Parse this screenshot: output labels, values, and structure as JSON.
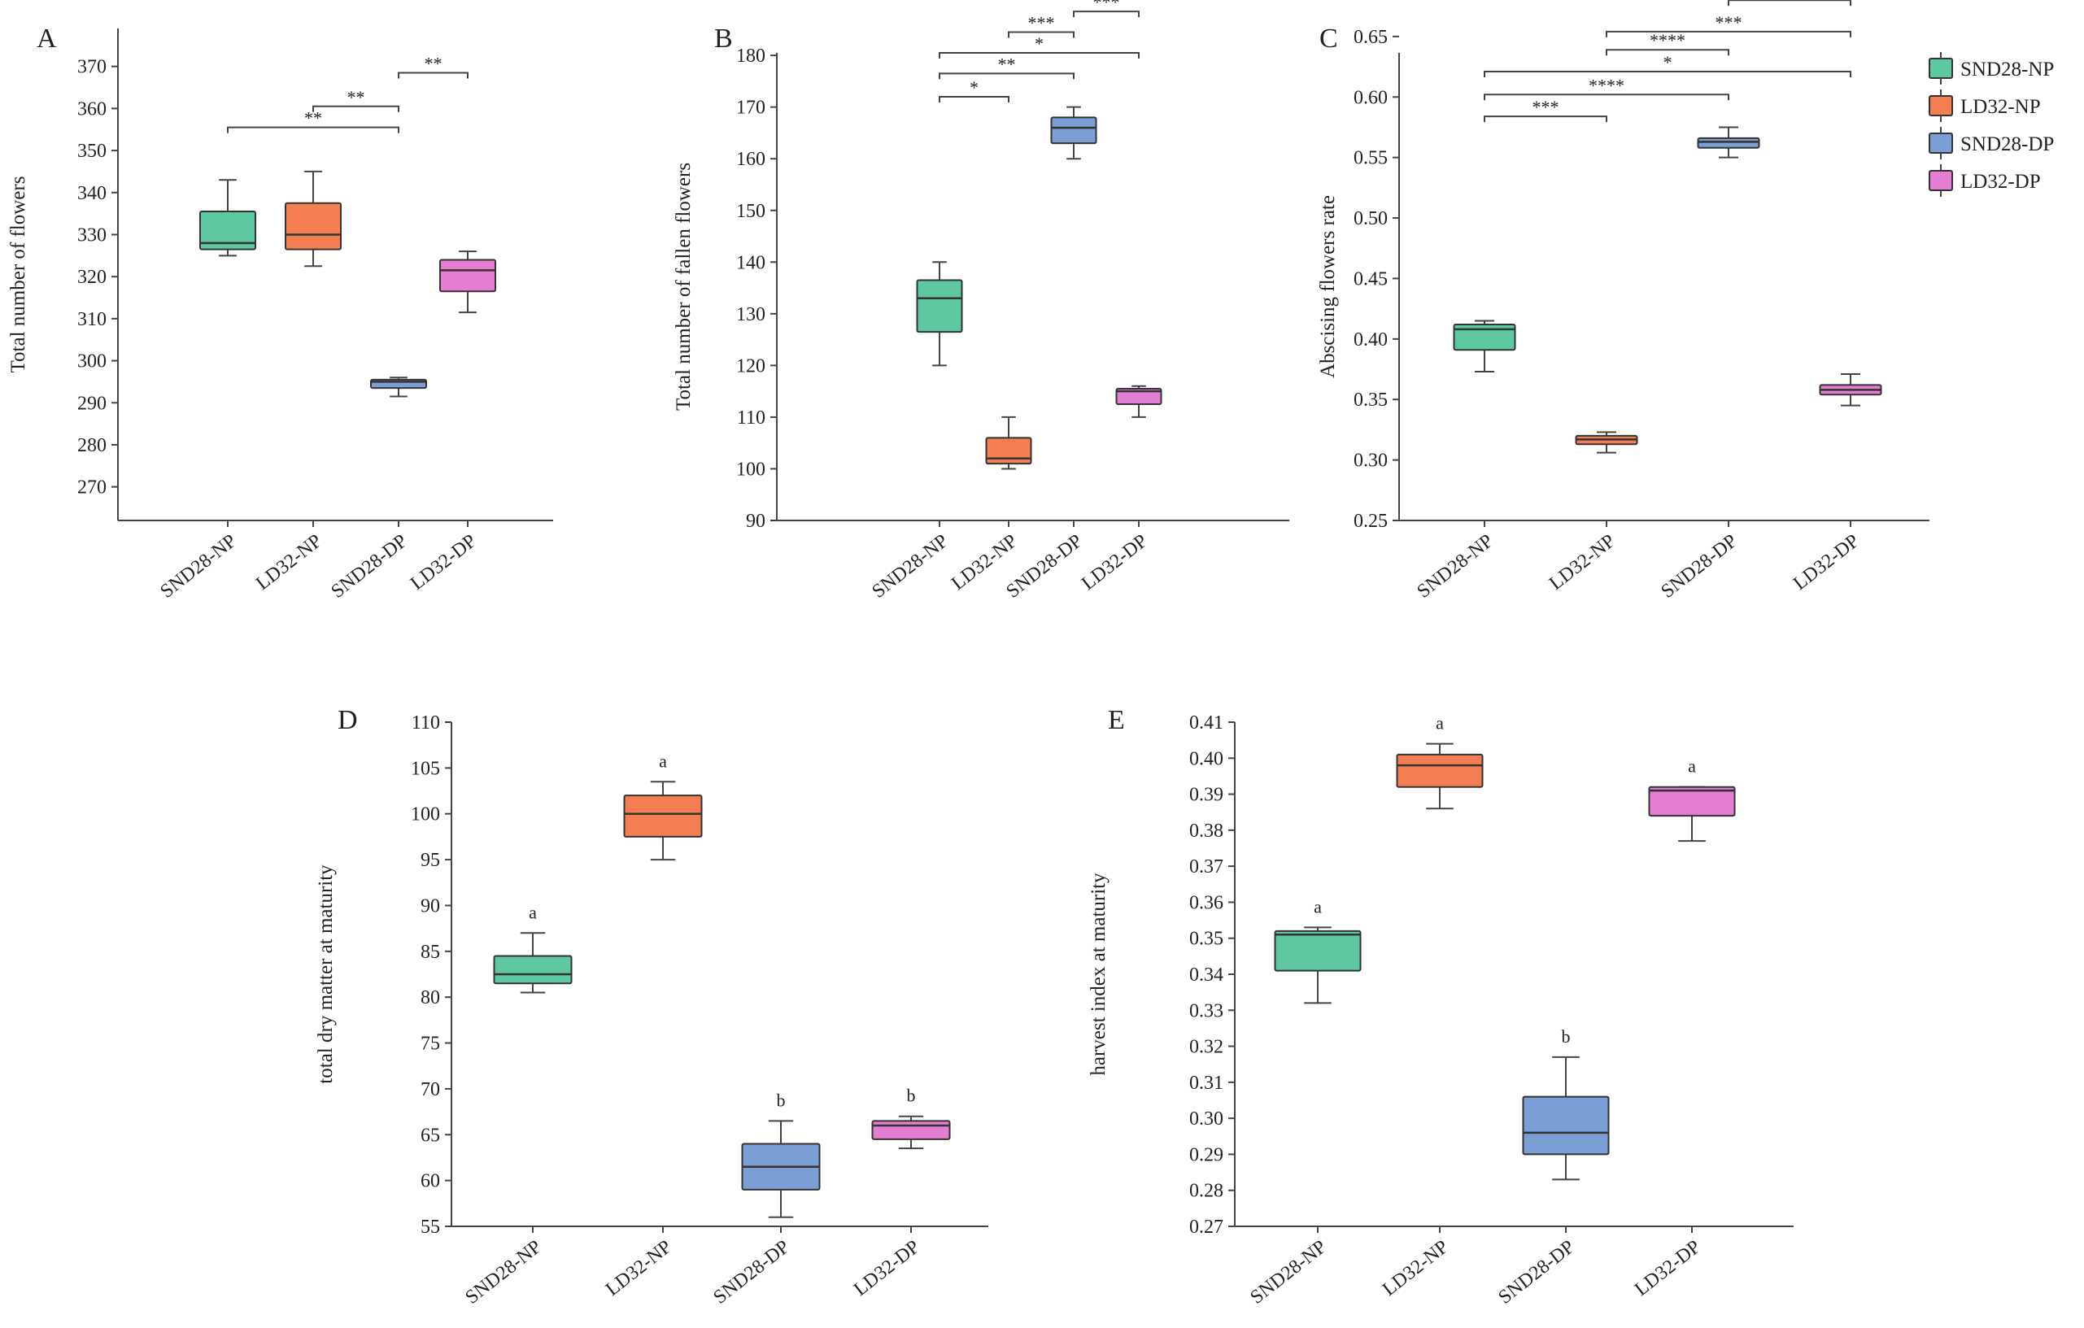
{
  "legend": {
    "entries": [
      {
        "label": "SND28-NP",
        "color": "#5ec8a0"
      },
      {
        "label": "LD32-NP",
        "color": "#f47e52"
      },
      {
        "label": "SND28-DP",
        "color": "#7b9fd4"
      },
      {
        "label": "LD32-DP",
        "color": "#e57ed2"
      }
    ]
  },
  "chart_data": [
    {
      "id": "A",
      "panel_label": "A",
      "type": "box",
      "ylabel": "Total number of flowers",
      "ylim": [
        262,
        380
      ],
      "yticks": [
        270,
        280,
        290,
        300,
        310,
        320,
        330,
        340,
        350,
        360,
        370
      ],
      "tick_decimals": 0,
      "xlim": [
        -0.6,
        4.8
      ],
      "categories": [
        "SND28-NP",
        "LD32-NP",
        "SND28-DP",
        "LD32-DP"
      ],
      "boxes": [
        {
          "min": 325,
          "q1": 326.5,
          "median": 328,
          "q3": 335.5,
          "max": 343
        },
        {
          "min": 322.5,
          "q1": 326.5,
          "median": 330,
          "q3": 337.5,
          "max": 345
        },
        {
          "min": 291.5,
          "q1": 293.5,
          "median": 295,
          "q3": 295.5,
          "max": 296
        },
        {
          "min": 311.5,
          "q1": 316.5,
          "median": 321.5,
          "q3": 324,
          "max": 326
        }
      ],
      "significance": [
        {
          "from": 0,
          "to": 2,
          "label": "**",
          "y": 355.5
        },
        {
          "from": 1,
          "to": 2,
          "label": "**",
          "y": 360.5
        },
        {
          "from": 2,
          "to": 3,
          "label": "**",
          "y": 368.5
        }
      ]
    },
    {
      "id": "B",
      "panel_label": "B",
      "type": "box",
      "ylabel": "Total number of fallen flowers",
      "ylim": [
        90,
        186
      ],
      "yticks": [
        90,
        100,
        110,
        120,
        130,
        140,
        150,
        160,
        170,
        180
      ],
      "tick_decimals": 0,
      "xlim": [
        -1.8,
        4.7
      ],
      "categories": [
        "SND28-NP",
        "LD32-NP",
        "SND28-DP",
        "LD32-DP"
      ],
      "boxes": [
        {
          "min": 120,
          "q1": 126.5,
          "median": 133,
          "q3": 136.5,
          "max": 140
        },
        {
          "min": 100,
          "q1": 101,
          "median": 102,
          "q3": 106,
          "max": 110
        },
        {
          "min": 160,
          "q1": 163,
          "median": 166,
          "q3": 168,
          "max": 170
        },
        {
          "min": 110,
          "q1": 112.5,
          "median": 115,
          "q3": 115.5,
          "max": 116
        }
      ],
      "significance": [
        {
          "from": 0,
          "to": 1,
          "label": "*",
          "y": 172
        },
        {
          "from": 0,
          "to": 2,
          "label": "**",
          "y": 176.5
        },
        {
          "from": 0,
          "to": 3,
          "label": "*",
          "y": 180.5
        },
        {
          "from": 1,
          "to": 2,
          "label": "***",
          "y": 184.5
        },
        {
          "from": 2,
          "to": 3,
          "label": "***",
          "y": 188.5
        }
      ]
    },
    {
      "id": "C",
      "panel_label": "C",
      "type": "box",
      "ylabel": "Abscising flowers rate",
      "ylim": [
        0.25,
        0.66
      ],
      "yticks": [
        0.25,
        0.3,
        0.35,
        0.4,
        0.45,
        0.5,
        0.55,
        0.6,
        0.65
      ],
      "tick_decimals": 2,
      "xlim": [
        -0.55,
        3.6
      ],
      "categories": [
        "SND28-NP",
        "LD32-NP",
        "SND28-DP",
        "LD32-DP"
      ],
      "boxes": [
        {
          "min": 0.373,
          "q1": 0.391,
          "median": 0.408,
          "q3": 0.412,
          "max": 0.415
        },
        {
          "min": 0.306,
          "q1": 0.313,
          "median": 0.317,
          "q3": 0.32,
          "max": 0.323
        },
        {
          "min": 0.55,
          "q1": 0.558,
          "median": 0.563,
          "q3": 0.566,
          "max": 0.575
        },
        {
          "min": 0.345,
          "q1": 0.354,
          "median": 0.358,
          "q3": 0.362,
          "max": 0.371
        }
      ],
      "significance": [
        {
          "from": 0,
          "to": 1,
          "label": "***",
          "y": 0.584
        },
        {
          "from": 0,
          "to": 2,
          "label": "****",
          "y": 0.602
        },
        {
          "from": 0,
          "to": 3,
          "label": "*",
          "y": 0.621
        },
        {
          "from": 1,
          "to": 2,
          "label": "****",
          "y": 0.639
        },
        {
          "from": 1,
          "to": 3,
          "label": "***",
          "y": 0.654
        },
        {
          "from": 2,
          "to": 3,
          "label": "****",
          "y": 0.68
        }
      ]
    },
    {
      "id": "D",
      "panel_label": "D",
      "type": "box",
      "ylabel": "total dry matter at maturity",
      "ylim": [
        55,
        110
      ],
      "yticks": [
        55,
        60,
        65,
        70,
        75,
        80,
        85,
        90,
        95,
        100,
        105,
        110
      ],
      "tick_decimals": 0,
      "xlim": [
        -0.55,
        3.55
      ],
      "categories": [
        "SND28-NP",
        "LD32-NP",
        "SND28-DP",
        "LD32-DP"
      ],
      "boxes": [
        {
          "min": 80.5,
          "q1": 81.5,
          "median": 82.5,
          "q3": 84.5,
          "max": 87,
          "letter": "a"
        },
        {
          "min": 95,
          "q1": 97.5,
          "median": 100,
          "q3": 102,
          "max": 103.5,
          "letter": "a"
        },
        {
          "min": 56,
          "q1": 59,
          "median": 61.5,
          "q3": 64,
          "max": 66.5,
          "letter": "b"
        },
        {
          "min": 63.5,
          "q1": 64.5,
          "median": 66,
          "q3": 66.5,
          "max": 67,
          "letter": "b"
        }
      ]
    },
    {
      "id": "E",
      "panel_label": "E",
      "type": "box",
      "ylabel": "harvest index at maturity",
      "ylim": [
        0.27,
        0.41
      ],
      "yticks": [
        0.27,
        0.28,
        0.29,
        0.3,
        0.31,
        0.32,
        0.33,
        0.34,
        0.35,
        0.36,
        0.37,
        0.38,
        0.39,
        0.4,
        0.41
      ],
      "tick_decimals": 2,
      "xlim": [
        -0.6,
        3.55
      ],
      "categories": [
        "SND28-NP",
        "LD32-NP",
        "SND28-DP",
        "LD32-DP"
      ],
      "boxes": [
        {
          "min": 0.332,
          "q1": 0.341,
          "median": 0.351,
          "q3": 0.352,
          "max": 0.353,
          "letter": "a"
        },
        {
          "min": 0.386,
          "q1": 0.392,
          "median": 0.398,
          "q3": 0.401,
          "max": 0.404,
          "letter": "a"
        },
        {
          "min": 0.283,
          "q1": 0.29,
          "median": 0.296,
          "q3": 0.306,
          "max": 0.317,
          "letter": "b"
        },
        {
          "min": 0.377,
          "q1": 0.384,
          "median": 0.391,
          "q3": 0.392,
          "max": 0.392,
          "letter": "a"
        }
      ]
    }
  ]
}
